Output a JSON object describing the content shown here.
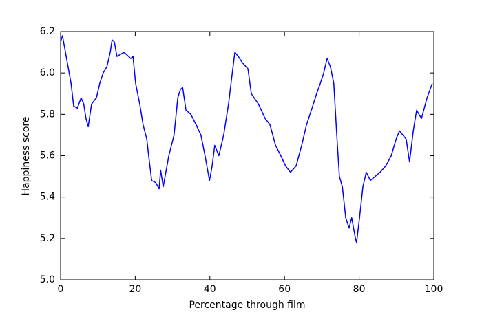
{
  "chart_data": {
    "type": "line",
    "xlabel": "Percentage through film",
    "ylabel": "Happiness score",
    "color": "#0000ff",
    "x": [
      0,
      0.5,
      1.8,
      2.8,
      3.5,
      4.5,
      5.5,
      6.2,
      6.8,
      7.4,
      8.3,
      9.6,
      10.5,
      11.4,
      12.4,
      13.3,
      13.8,
      14.4,
      15.1,
      17,
      18.8,
      19.4,
      20.1,
      21.2,
      22.1,
      23.1,
      23.6,
      24.4,
      25.5,
      26.4,
      26.8,
      27.5,
      28.2,
      29,
      30.4,
      31.4,
      32.1,
      32.7,
      33.6,
      34.9,
      36.3,
      37.6,
      38.7,
      39.9,
      40.6,
      41.3,
      42.4,
      43.7,
      45,
      46,
      46.7,
      47.6,
      48.7,
      50.2,
      51.1,
      53,
      54.8,
      56.1,
      57.6,
      59,
      60.3,
      61.6,
      63.1,
      64.6,
      65.9,
      67.2,
      68.6,
      69.6,
      70.5,
      71.4,
      72.3,
      73.2,
      74,
      74.7,
      75.5,
      76.4,
      77.3,
      78,
      79,
      79.3,
      80.1,
      81,
      81.9,
      83,
      84.3,
      85.6,
      87.1,
      88.6,
      89.9,
      90.8,
      92.6,
      93.5,
      94.5,
      95.4,
      96.7,
      98.2,
      99.6
    ],
    "values": [
      6.15,
      6.18,
      6.05,
      5.95,
      5.84,
      5.83,
      5.88,
      5.85,
      5.78,
      5.74,
      5.85,
      5.88,
      5.95,
      6.0,
      6.03,
      6.1,
      6.16,
      6.15,
      6.08,
      6.1,
      6.07,
      6.08,
      5.95,
      5.85,
      5.75,
      5.68,
      5.6,
      5.48,
      5.47,
      5.44,
      5.53,
      5.45,
      5.52,
      5.6,
      5.7,
      5.88,
      5.92,
      5.93,
      5.82,
      5.8,
      5.75,
      5.7,
      5.6,
      5.48,
      5.55,
      5.65,
      5.6,
      5.7,
      5.85,
      6.0,
      6.1,
      6.08,
      6.05,
      6.02,
      5.9,
      5.85,
      5.78,
      5.75,
      5.65,
      5.6,
      5.55,
      5.52,
      5.55,
      5.65,
      5.75,
      5.82,
      5.9,
      5.95,
      6.0,
      6.07,
      6.03,
      5.95,
      5.7,
      5.5,
      5.45,
      5.3,
      5.25,
      5.3,
      5.2,
      5.18,
      5.3,
      5.45,
      5.52,
      5.48,
      5.5,
      5.52,
      5.55,
      5.6,
      5.68,
      5.72,
      5.68,
      5.57,
      5.72,
      5.82,
      5.78,
      5.88,
      5.95
    ],
    "xlim": [
      0,
      100
    ],
    "xticks": [
      0,
      20,
      40,
      60,
      80,
      100
    ],
    "ylim": [
      5,
      6.2
    ],
    "yticks": [
      {
        "value": 5,
        "label": "5.0"
      },
      5.2,
      5.4,
      5.6,
      5.8,
      {
        "value": 6,
        "label": "6.0"
      },
      6.2
    ],
    "grid": false
  }
}
